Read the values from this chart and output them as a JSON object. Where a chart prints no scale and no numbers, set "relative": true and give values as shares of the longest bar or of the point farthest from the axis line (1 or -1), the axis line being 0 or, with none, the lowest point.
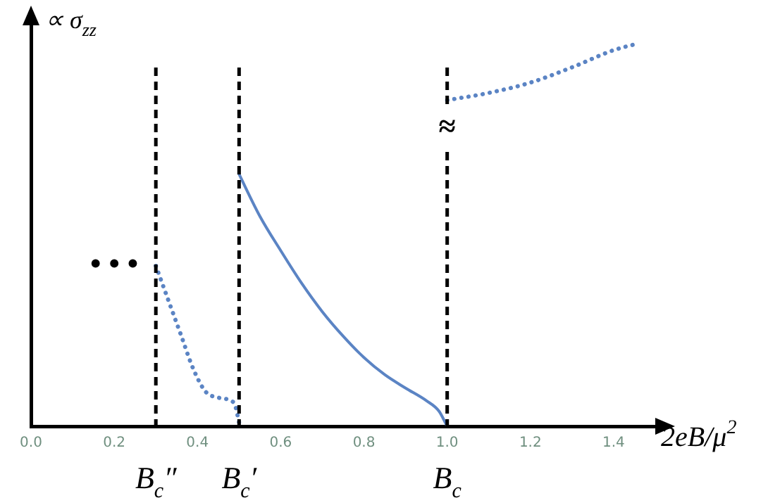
{
  "chart_data": {
    "type": "line",
    "relative": true,
    "xlabel": "2eB/μ$^{2}$",
    "ylabel": "∝ σ$_{zz}$",
    "xlim": [
      0,
      1.5
    ],
    "xticks": [
      {
        "value": 0,
        "label": "0.0"
      },
      {
        "value": 0.2,
        "label": "0.2"
      },
      {
        "value": 0.4,
        "label": "0.4"
      },
      {
        "value": 0.6,
        "label": "0.6"
      },
      {
        "value": 0.8,
        "label": "0.8"
      },
      {
        "value": 1,
        "label": "1.0"
      },
      {
        "value": 1.2,
        "label": "1.2"
      },
      {
        "value": 1.4,
        "label": "1.4"
      }
    ],
    "series": [
      {
        "color": "#5b84c4",
        "line_style": "dotted",
        "x": [
          0.3,
          0.33,
          0.36,
          0.39,
          0.42,
          0.45,
          0.48,
          0.49,
          0.5
        ],
        "values": [
          0.42,
          0.33,
          0.24,
          0.15,
          0.09,
          0.075,
          0.067,
          0.056,
          0.01
        ]
      },
      {
        "color": "#5b84c4",
        "line_style": "solid",
        "x": [
          0.5,
          0.55,
          0.6,
          0.65,
          0.7,
          0.75,
          0.8,
          0.85,
          0.9,
          0.95,
          0.98,
          1.0
        ],
        "values": [
          0.66,
          0.55,
          0.46,
          0.375,
          0.3,
          0.236,
          0.18,
          0.135,
          0.1,
          0.067,
          0.04,
          0
        ]
      },
      {
        "color": "#5b84c4",
        "line_style": "dotted",
        "x": [
          1.0,
          1.1,
          1.2,
          1.3,
          1.4,
          1.45
        ],
        "values": [
          0.854,
          0.873,
          0.9,
          0.94,
          0.985,
          1.0
        ]
      }
    ],
    "ref_lines": [
      {
        "axis": "x",
        "value": 0.3,
        "label": "B$_{c}$″",
        "color": "#000000",
        "line_style": "dashed"
      },
      {
        "axis": "x",
        "value": 0.5,
        "label": "B$_{c}$′",
        "color": "#000000",
        "line_style": "dashed"
      },
      {
        "axis": "x",
        "value": 1.0,
        "label": "B$_{c}$",
        "color": "#000000",
        "line_style": "dashed"
      }
    ],
    "annotations": [
      "• • •",
      "≈"
    ],
    "tick_labels": "x",
    "grid": false,
    "legend": false,
    "marker": "none"
  }
}
